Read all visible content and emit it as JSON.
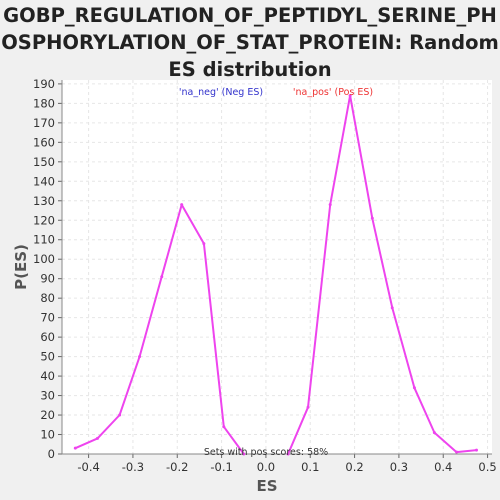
{
  "title_lines": [
    "GOBP_REGULATION_OF_PEPTIDYL_SERINE_PH",
    "OSPHORYLATION_OF_STAT_PROTEIN: Random",
    "ES distribution"
  ],
  "colors": {
    "series": "#ee44ee",
    "neg_label": "#3333cc",
    "pos_label": "#ee3333",
    "grid": "#e6e6e6",
    "plot_bg": "#ffffff"
  },
  "chart_data": {
    "type": "line",
    "title": "GOBP_REGULATION_OF_PEPTIDYL_SERINE_PHOSPHORYLATION_OF_STAT_PROTEIN: Random ES distribution",
    "xlabel": "ES",
    "ylabel": "P(ES)",
    "xlim": [
      -0.46,
      0.51
    ],
    "ylim": [
      0,
      192
    ],
    "xticks": [
      "-0.4",
      "-0.3",
      "-0.2",
      "-0.1",
      "0.0",
      "0.1",
      "0.2",
      "0.3",
      "0.4",
      "0.5"
    ],
    "xtick_values": [
      -0.4,
      -0.3,
      -0.2,
      -0.1,
      0.0,
      0.1,
      0.2,
      0.3,
      0.4,
      0.5
    ],
    "yticks": [
      0,
      10,
      20,
      30,
      40,
      50,
      60,
      70,
      80,
      90,
      100,
      110,
      120,
      130,
      140,
      150,
      160,
      170,
      180,
      190
    ],
    "grid": true,
    "series": [
      {
        "name": "'na_neg' (Neg ES)",
        "x": [
          -0.43,
          -0.38,
          -0.33,
          -0.285,
          -0.235,
          -0.19,
          -0.14,
          -0.095,
          -0.05
        ],
        "y": [
          3,
          8,
          20,
          50,
          91,
          128,
          108,
          14,
          0
        ]
      },
      {
        "name": "'na_pos' (Pos ES)",
        "x": [
          0.05,
          0.095,
          0.145,
          0.19,
          0.24,
          0.285,
          0.335,
          0.38,
          0.43,
          0.475
        ],
        "y": [
          0,
          24,
          128,
          184,
          121,
          75,
          34,
          11,
          1,
          2
        ]
      }
    ],
    "legend": [
      {
        "label": "'na_neg' (Neg ES)",
        "color": "#3333cc"
      },
      {
        "label": "'na_pos' (Pos ES)",
        "color": "#ee3333"
      }
    ],
    "annotation": "Sets with pos scores: 58%"
  }
}
